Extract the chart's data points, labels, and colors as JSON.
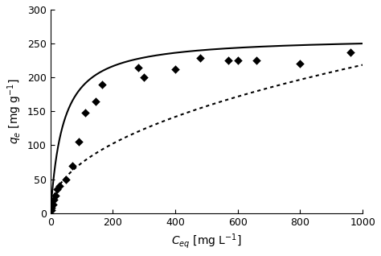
{
  "scatter_x": [
    2,
    4,
    7,
    10,
    15,
    22,
    30,
    50,
    70,
    90,
    110,
    145,
    165,
    280,
    300,
    400,
    480,
    570,
    600,
    660,
    800,
    960
  ],
  "scatter_y": [
    5,
    8,
    13,
    20,
    26,
    35,
    40,
    50,
    70,
    105,
    148,
    165,
    190,
    215,
    200,
    212,
    229,
    225,
    225,
    225,
    221,
    237
  ],
  "langmuir_qmax": 260.0,
  "langmuir_KL": 0.025,
  "freundlich_Kf": 8.5,
  "freundlich_n": 0.47,
  "x_min": 0,
  "x_max": 1000,
  "y_min": 0,
  "y_max": 300,
  "xticks": [
    0,
    200,
    400,
    600,
    800,
    1000
  ],
  "yticks": [
    0,
    50,
    100,
    150,
    200,
    250,
    300
  ],
  "marker": "D",
  "marker_color": "black",
  "marker_size": 5,
  "solid_color": "black",
  "dotted_color": "black",
  "background": "#ffffff",
  "linewidth": 1.5
}
